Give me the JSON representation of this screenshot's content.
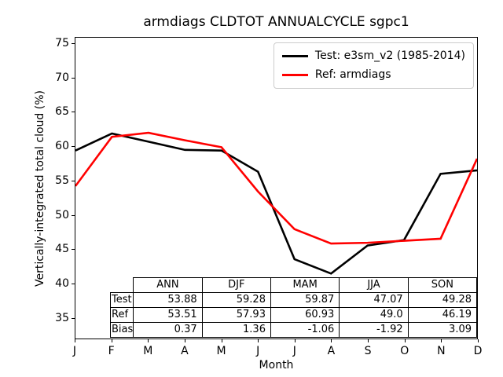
{
  "title": "armdiags CLDTOT ANNUALCYCLE sgpc1",
  "xlabel": "Month",
  "ylabel": "Vertically-integrated total cloud (%)",
  "legend": {
    "entries": [
      {
        "label": "Test: e3sm_v2 (1985-2014)",
        "color": "#000000"
      },
      {
        "label": "Ref: armdiags",
        "color": "#ff0000"
      }
    ]
  },
  "stats_table": {
    "columns": [
      "ANN",
      "DJF",
      "MAM",
      "JJA",
      "SON"
    ],
    "rows": [
      {
        "label": "Test",
        "values": [
          "53.88",
          "59.28",
          "59.87",
          "47.07",
          "49.28"
        ]
      },
      {
        "label": "Ref",
        "values": [
          "53.51",
          "57.93",
          "60.93",
          "49.0",
          "46.19"
        ]
      },
      {
        "label": "Bias",
        "values": [
          "0.37",
          "1.36",
          "-1.06",
          "-1.92",
          "3.09"
        ]
      }
    ]
  },
  "chart_data": {
    "type": "line",
    "title": "armdiags CLDTOT ANNUALCYCLE sgpc1",
    "xlabel": "Month",
    "ylabel": "Vertically-integrated total cloud (%)",
    "categories": [
      "J",
      "F",
      "M",
      "A",
      "M",
      "J",
      "J",
      "A",
      "S",
      "O",
      "N",
      "D"
    ],
    "yticks": [
      35,
      40,
      45,
      50,
      55,
      60,
      65,
      70,
      75
    ],
    "ylim": [
      31.9,
      75.91
    ],
    "grid": false,
    "legend_position": "upper right",
    "series": [
      {
        "name": "Test: e3sm_v2 (1985-2014)",
        "color": "#000000",
        "values": [
          59.4,
          61.9,
          60.7,
          59.5,
          59.4,
          56.3,
          43.5,
          41.4,
          45.5,
          46.3,
          56.0,
          56.5
        ]
      },
      {
        "name": "Ref: armdiags",
        "color": "#ff0000",
        "values": [
          54.2,
          61.4,
          62.0,
          60.9,
          59.9,
          53.4,
          47.9,
          45.8,
          45.9,
          46.2,
          46.5,
          58.2
        ]
      }
    ]
  }
}
